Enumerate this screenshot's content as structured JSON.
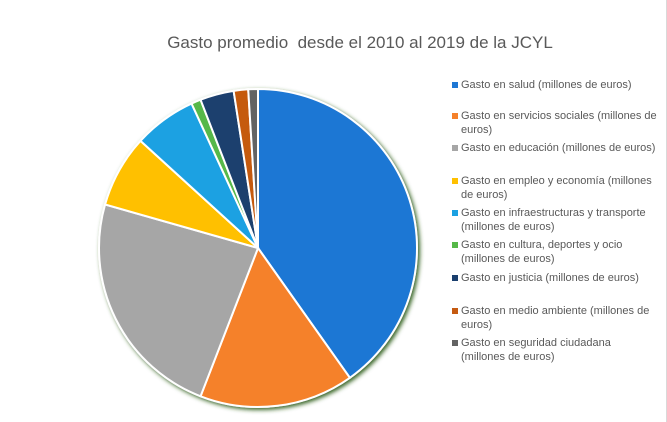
{
  "chart_data": {
    "type": "pie",
    "title": "Gasto promedio  desde el 2010 al 2019 de la JCYL",
    "categories": [
      "Gasto en salud (millones de euros)",
      "Gasto en servicios sociales (millones de euros)",
      "Gasto en educación (millones de euros)",
      "Gasto en empleo y economía (millones de euros)",
      "Gasto en infraestructuras y transporte (millones de euros)",
      "Gasto en cultura, deportes y ocio (millones de euros)",
      "Gasto en justicia (millones de euros)",
      "Gasto en medio ambiente (millones de euros)",
      "Gasto en seguridad ciudadana (millones de euros)"
    ],
    "values": [
      41.0,
      16.0,
      24.0,
      7.5,
      6.5,
      1.0,
      3.5,
      1.5,
      1.0
    ],
    "colors": [
      "#1f77d4",
      "#f5812a",
      "#a6a6a6",
      "#ffc000",
      "#1ba1e2",
      "#56b848",
      "#1a3f6e",
      "#c55a11",
      "#636363"
    ],
    "legend_position": "right",
    "start_angle_deg": 0
  }
}
